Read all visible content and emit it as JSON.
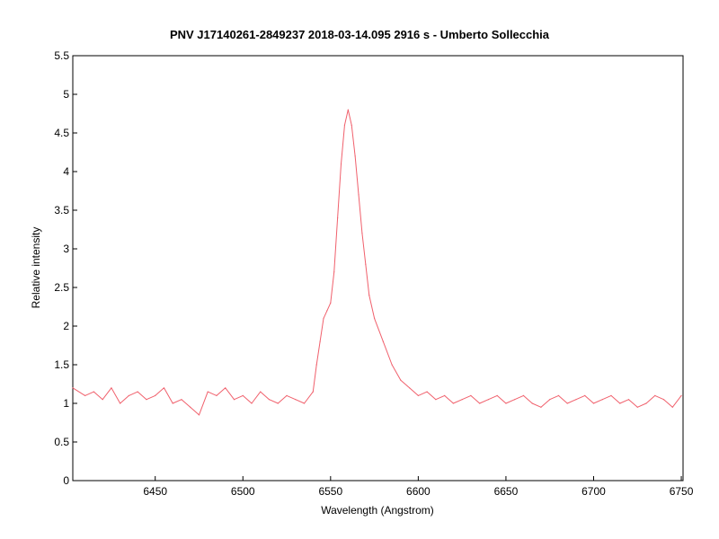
{
  "chart_data": {
    "type": "line",
    "title": "PNV J17140261-2849237   2018-03-14.095   2916 s  - Umberto Sollecchia",
    "xlabel": "Wavelength (Angstrom)",
    "ylabel": "Relative intensity",
    "xlim": [
      6403,
      6751
    ],
    "ylim": [
      0,
      5.5
    ],
    "xticks": [
      6450,
      6500,
      6550,
      6600,
      6650,
      6700,
      6750
    ],
    "xtick_labels": [
      "6450",
      "6500",
      "6550",
      "6600",
      "6650",
      "6700",
      "6750"
    ],
    "yticks": [
      0,
      0.5,
      1,
      1.5,
      2,
      2.5,
      3,
      3.5,
      4,
      4.5,
      5,
      5.5
    ],
    "ytick_labels": [
      "0",
      "0.5",
      "1",
      "1.5",
      "2",
      "2.5",
      "3",
      "3.5",
      "4",
      "4.5",
      "5",
      "5.5"
    ],
    "grid": false,
    "line_color": "#f0606c",
    "series": [
      {
        "x": [
          6403,
          6410,
          6415,
          6420,
          6425,
          6430,
          6435,
          6440,
          6445,
          6450,
          6455,
          6460,
          6465,
          6470,
          6475,
          6480,
          6485,
          6490,
          6495,
          6500,
          6505,
          6510,
          6515,
          6520,
          6525,
          6530,
          6535,
          6540,
          6542,
          6544,
          6546,
          6548,
          6550,
          6552,
          6554,
          6556,
          6558,
          6560,
          6562,
          6564,
          6566,
          6568,
          6570,
          6572,
          6575,
          6580,
          6585,
          6590,
          6595,
          6600,
          6605,
          6610,
          6615,
          6620,
          6625,
          6630,
          6635,
          6640,
          6645,
          6650,
          6655,
          6660,
          6665,
          6670,
          6675,
          6680,
          6685,
          6690,
          6695,
          6700,
          6705,
          6710,
          6715,
          6720,
          6725,
          6730,
          6735,
          6740,
          6745,
          6750
        ],
        "y": [
          1.2,
          1.1,
          1.15,
          1.05,
          1.2,
          1.0,
          1.1,
          1.15,
          1.05,
          1.1,
          1.2,
          1.0,
          1.05,
          0.95,
          0.85,
          1.15,
          1.1,
          1.2,
          1.05,
          1.1,
          1.0,
          1.15,
          1.05,
          1.0,
          1.1,
          1.05,
          1.0,
          1.15,
          1.5,
          1.8,
          2.1,
          2.2,
          2.3,
          2.7,
          3.4,
          4.1,
          4.6,
          4.8,
          4.6,
          4.2,
          3.7,
          3.2,
          2.8,
          2.4,
          2.1,
          1.8,
          1.5,
          1.3,
          1.2,
          1.1,
          1.15,
          1.05,
          1.1,
          1.0,
          1.05,
          1.1,
          1.0,
          1.05,
          1.1,
          1.0,
          1.05,
          1.1,
          1.0,
          0.95,
          1.05,
          1.1,
          1.0,
          1.05,
          1.1,
          1.0,
          1.05,
          1.1,
          1.0,
          1.05,
          0.95,
          1.0,
          1.1,
          1.05,
          0.95,
          1.1
        ]
      }
    ]
  }
}
